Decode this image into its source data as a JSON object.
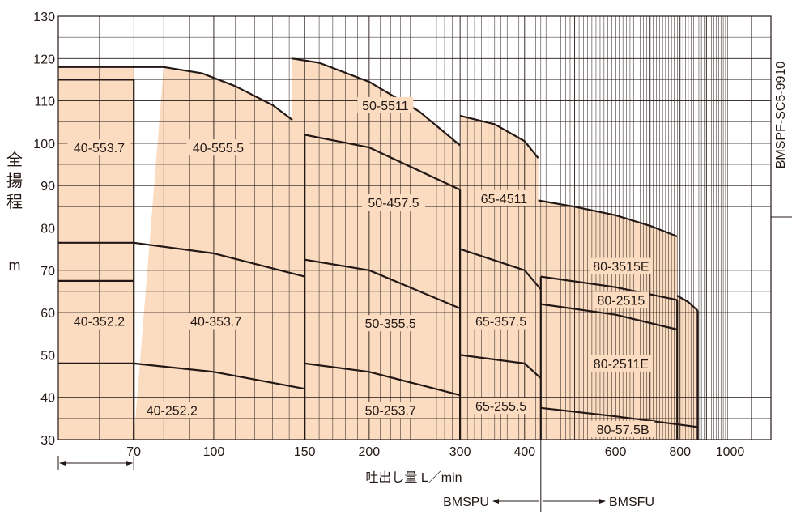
{
  "chart_data": {
    "type": "area",
    "title": "",
    "xlabel": "吐出し量 L／min",
    "ylabel_jp": "全揚程",
    "ylabel_unit": "m",
    "code_label": "BMSPF-SC5-9910",
    "xscale": "log",
    "xlim": [
      50,
      1200
    ],
    "ylim": [
      30,
      130
    ],
    "y_ticks": [
      30,
      40,
      50,
      60,
      70,
      80,
      90,
      100,
      110,
      120,
      130
    ],
    "x_tick_labels": [
      {
        "value": 70,
        "text": "70"
      },
      {
        "value": 100,
        "text": "100"
      },
      {
        "value": 150,
        "text": "150"
      },
      {
        "value": 200,
        "text": "200"
      },
      {
        "value": 300,
        "text": "300"
      },
      {
        "value": 400,
        "text": "400"
      },
      {
        "value": 600,
        "text": "600"
      },
      {
        "value": 800,
        "text": "800"
      },
      {
        "value": 1000,
        "text": "1000"
      }
    ],
    "fill_color": "#fbdcc0",
    "line_color": "#231815",
    "regions": [
      {
        "x": [
          50,
          50,
          70,
          70
        ],
        "y": [
          30,
          118,
          118,
          30
        ]
      },
      {
        "x": [
          70,
          80,
          95,
          110,
          130,
          142,
          142
        ],
        "y": [
          30,
          118,
          116.5,
          113.5,
          109,
          105.5,
          30
        ]
      },
      {
        "x": [
          142,
          142,
          160,
          200,
          250,
          300,
          300
        ],
        "y": [
          30,
          120,
          119,
          114.5,
          107.5,
          99.5,
          30
        ]
      },
      {
        "x": [
          300,
          300,
          350,
          400,
          425,
          425
        ],
        "y": [
          30,
          106.5,
          104.5,
          100.5,
          96.5,
          30
        ]
      },
      {
        "x": [
          425,
          425,
          500,
          600,
          700,
          790,
          790
        ],
        "y": [
          30,
          86.5,
          85,
          83,
          80.5,
          78,
          30
        ]
      },
      {
        "x": [
          790,
          790,
          830,
          865,
          865
        ],
        "y": [
          30,
          64,
          62.5,
          60.5,
          30
        ]
      }
    ],
    "curves": [
      {
        "x": [
          50,
          70
        ],
        "y": [
          118,
          118
        ]
      },
      {
        "x": [
          70,
          80,
          95,
          110,
          130,
          142
        ],
        "y": [
          118,
          118,
          116.5,
          113.5,
          109,
          105.5
        ]
      },
      {
        "x": [
          142,
          160,
          200,
          250,
          300
        ],
        "y": [
          120,
          119,
          114.5,
          107.5,
          99.5
        ]
      },
      {
        "x": [
          300,
          350,
          400,
          425
        ],
        "y": [
          106.5,
          104.5,
          100.5,
          96.5
        ]
      },
      {
        "x": [
          425,
          500,
          600,
          700,
          790
        ],
        "y": [
          86.5,
          85,
          83,
          80.5,
          78
        ]
      },
      {
        "x": [
          790,
          830,
          865
        ],
        "y": [
          64,
          62.5,
          60.5
        ]
      },
      {
        "x": [
          50,
          70,
          70
        ],
        "y": [
          115,
          115,
          30
        ]
      },
      {
        "x": [
          50,
          70
        ],
        "y": [
          76.5,
          76.5
        ]
      },
      {
        "x": [
          50,
          70
        ],
        "y": [
          67.5,
          67.5
        ]
      },
      {
        "x": [
          50,
          70
        ],
        "y": [
          48,
          48
        ]
      },
      {
        "x": [
          70,
          100,
          150
        ],
        "y": [
          76.5,
          74,
          68.5
        ]
      },
      {
        "x": [
          70,
          100,
          150
        ],
        "y": [
          48,
          46,
          42
        ]
      },
      {
        "x": [
          150,
          200,
          300
        ],
        "y": [
          102,
          99,
          89
        ]
      },
      {
        "x": [
          150,
          200,
          300
        ],
        "y": [
          72.5,
          70,
          61
        ]
      },
      {
        "x": [
          150,
          200,
          300
        ],
        "y": [
          48,
          46,
          40.5
        ]
      },
      {
        "x": [
          300,
          400,
          430
        ],
        "y": [
          75,
          70,
          65.5
        ]
      },
      {
        "x": [
          300,
          400,
          430
        ],
        "y": [
          50,
          48,
          44.5
        ]
      },
      {
        "x": [
          430,
          600,
          790
        ],
        "y": [
          68.5,
          66,
          63
        ]
      },
      {
        "x": [
          430,
          600,
          790
        ],
        "y": [
          62,
          59.5,
          56
        ]
      },
      {
        "x": [
          430,
          600,
          865
        ],
        "y": [
          37.5,
          35.5,
          33
        ]
      },
      {
        "x": [
          150,
          150
        ],
        "y": [
          30,
          102
        ]
      },
      {
        "x": [
          300,
          300
        ],
        "y": [
          30,
          89
        ]
      },
      {
        "x": [
          430,
          430
        ],
        "y": [
          30,
          68.5
        ]
      },
      {
        "x": [
          790,
          790
        ],
        "y": [
          30,
          63
        ]
      },
      {
        "x": [
          865,
          865
        ],
        "y": [
          30,
          60.5
        ]
      }
    ],
    "labels": [
      {
        "text": "40-553.7",
        "x": 60,
        "y": 99
      },
      {
        "text": "40-555.5",
        "x": 102,
        "y": 99
      },
      {
        "text": "50-5511",
        "x": 215,
        "y": 109
      },
      {
        "text": "50-457.5",
        "x": 223,
        "y": 86
      },
      {
        "text": "65-4511",
        "x": 365,
        "y": 87
      },
      {
        "text": "80-3515E",
        "x": 615,
        "y": 71
      },
      {
        "text": "80-2515",
        "x": 615,
        "y": 63
      },
      {
        "text": "40-352.2",
        "x": 60,
        "y": 58
      },
      {
        "text": "40-353.7",
        "x": 101,
        "y": 58
      },
      {
        "text": "50-355.5",
        "x": 220,
        "y": 57.5
      },
      {
        "text": "65-357.5",
        "x": 360,
        "y": 58
      },
      {
        "text": "80-2511E",
        "x": 615,
        "y": 48
      },
      {
        "text": "40-252.2",
        "x": 83,
        "y": 37
      },
      {
        "text": "50-253.7",
        "x": 220,
        "y": 37
      },
      {
        "text": "65-255.5",
        "x": 360,
        "y": 38
      },
      {
        "text": "80-57.5B",
        "x": 620,
        "y": 32.5
      }
    ],
    "series_labels": {
      "left": "BMSPU",
      "right": "BMSFU"
    }
  }
}
